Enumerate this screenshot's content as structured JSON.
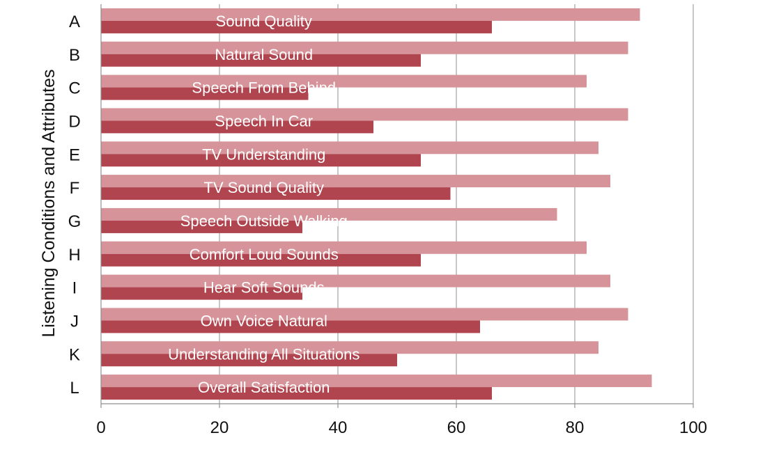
{
  "chart_data": {
    "type": "bar",
    "orientation": "horizontal",
    "ylabel": "Listening Conditions and Attributes",
    "xlabel": "",
    "xlim": [
      0,
      100
    ],
    "xticks": [
      0,
      20,
      40,
      60,
      80,
      100
    ],
    "grid": true,
    "categories": [
      "A",
      "B",
      "C",
      "D",
      "E",
      "F",
      "G",
      "H",
      "I",
      "J",
      "K",
      "L"
    ],
    "bar_labels": [
      "Sound Quality",
      "Natural Sound",
      "Speech From Behind",
      "Speech In Car",
      "TV Understanding",
      "TV Sound Quality",
      "Speech Outside Walking",
      "Comfort Loud Sounds",
      "Hear Soft Sounds",
      "Own Voice Natural",
      "Understanding All Situations",
      "Overall Satisfaction"
    ],
    "series": [
      {
        "color": "#d6949a",
        "values": [
          91,
          89,
          82,
          89,
          84,
          86,
          77,
          82,
          86,
          89,
          84,
          93
        ]
      },
      {
        "color": "#b0454f",
        "values": [
          66,
          54,
          35,
          46,
          54,
          59,
          34,
          54,
          34,
          64,
          50,
          66
        ]
      }
    ]
  }
}
